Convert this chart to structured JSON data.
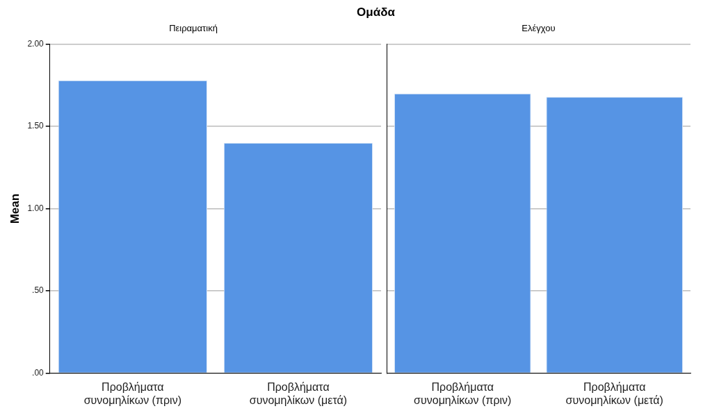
{
  "chart_data": [
    {
      "type": "bar",
      "title": "Πειραματική",
      "annotations": [
        "Ομάδα"
      ],
      "ylabel": "Mean",
      "categories": [
        "Προβλήματα συνομηλίκων (πριν)",
        "Προβλήματα συνομηλίκων (μετά)"
      ],
      "values": [
        1.78,
        1.4
      ],
      "color": "#5694e4",
      "ylim": [
        0,
        2
      ],
      "yticks": [
        {
          "value": 0,
          "label": ".00"
        },
        {
          "value": 0.5,
          "label": ".50"
        },
        {
          "value": 1,
          "label": "1.00"
        },
        {
          "value": 1.5,
          "label": "1.50"
        },
        {
          "value": 2,
          "label": "2.00"
        }
      ],
      "grid": "y"
    },
    {
      "type": "bar",
      "title": "Ελέγχου",
      "categories": [
        "Προβλήματα συνομηλίκων (πριν)",
        "Προβλήματα συνομηλίκων (μετά)"
      ],
      "values": [
        1.7,
        1.68
      ],
      "color": "#5694e4",
      "ylim": [
        0,
        2
      ],
      "yticks": [
        0,
        0.5,
        1,
        1.5,
        2
      ],
      "grid": "y",
      "tick_labels": "x"
    }
  ]
}
